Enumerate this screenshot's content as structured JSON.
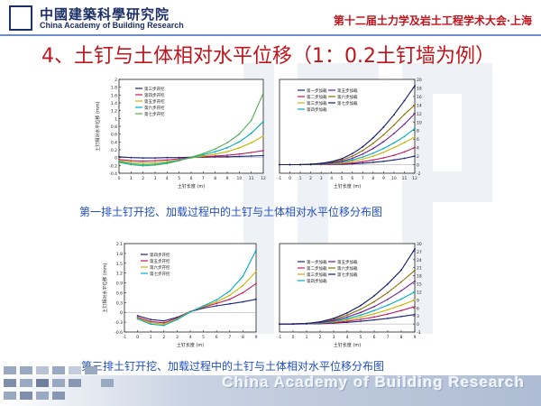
{
  "header": {
    "logo_cn": "中國建築科學研究院",
    "logo_en": "China Academy of Building Research",
    "conference": "第十二届土力学及岩土工程学术大会·上海"
  },
  "title": "4、土钉与土体相对水平位移（1：0.2土钉墙为例）",
  "captions": [
    "第一排土钉开挖、加载过程中的土钉与土体相对水平位移分布图",
    "第三排土钉开挖、加载过程中的土钉与土体相对水平位移分布图"
  ],
  "footer": {
    "text": "China Academy of Building Research"
  },
  "chart_data": [
    {
      "id": "row1-excavation",
      "type": "line",
      "xlabel": "土钉长度 (m)",
      "ylabel": "土钉相对水平位移 (mm)",
      "xlim": [
        0,
        12
      ],
      "ylim": [
        -0.4,
        2.0
      ],
      "xticks": [
        0,
        1,
        2,
        3,
        4,
        5,
        6,
        7,
        8,
        9,
        10,
        11,
        12
      ],
      "yticks": [
        -0.4,
        -0.2,
        0.0,
        0.2,
        0.4,
        0.6,
        0.8,
        1.0,
        1.2,
        1.4,
        1.6,
        1.8,
        2.0
      ],
      "legend_position": "top-left",
      "series": [
        {
          "name": "第三步开挖",
          "color": "#1a237e",
          "x": [
            0,
            1,
            2,
            3,
            4,
            5,
            6,
            7,
            8,
            9,
            10,
            11,
            12
          ],
          "y": [
            0.02,
            0.0,
            -0.01,
            -0.01,
            0.0,
            0.0,
            0.01,
            0.01,
            0.02,
            0.02,
            0.03,
            0.04,
            0.05
          ]
        },
        {
          "name": "第四步开挖",
          "color": "#c2185b",
          "x": [
            0,
            1,
            2,
            3,
            4,
            5,
            6,
            7,
            8,
            9,
            10,
            11,
            12
          ],
          "y": [
            -0.05,
            -0.08,
            -0.09,
            -0.08,
            -0.06,
            -0.03,
            0.0,
            0.02,
            0.04,
            0.06,
            0.09,
            0.13,
            0.18
          ]
        },
        {
          "name": "第五步开挖",
          "color": "#c8b400",
          "x": [
            0,
            1,
            2,
            3,
            4,
            5,
            6,
            7,
            8,
            9,
            10,
            11,
            12
          ],
          "y": [
            -0.08,
            -0.12,
            -0.14,
            -0.13,
            -0.1,
            -0.06,
            -0.01,
            0.04,
            0.09,
            0.15,
            0.25,
            0.38,
            0.55
          ]
        },
        {
          "name": "第六步开挖",
          "color": "#00acc1",
          "x": [
            0,
            1,
            2,
            3,
            4,
            5,
            6,
            7,
            8,
            9,
            10,
            11,
            12
          ],
          "y": [
            -0.1,
            -0.16,
            -0.18,
            -0.17,
            -0.13,
            -0.07,
            0.0,
            0.07,
            0.15,
            0.25,
            0.4,
            0.62,
            0.92
          ]
        },
        {
          "name": "第七步开挖",
          "color": "#4caf50",
          "x": [
            0,
            1,
            2,
            3,
            4,
            5,
            6,
            7,
            8,
            9,
            10,
            11,
            12
          ],
          "y": [
            -0.12,
            -0.18,
            -0.21,
            -0.19,
            -0.15,
            -0.08,
            0.01,
            0.1,
            0.22,
            0.38,
            0.6,
            0.95,
            1.65
          ]
        }
      ]
    },
    {
      "id": "row1-loading",
      "type": "line",
      "xlabel": "土钉长度 (m)",
      "ylabel": "",
      "xlim": [
        -1,
        12
      ],
      "ylim": [
        -2,
        20
      ],
      "xticks": [
        -1,
        0,
        1,
        2,
        3,
        4,
        5,
        6,
        7,
        8,
        9,
        10,
        11,
        12
      ],
      "yticks": [
        -2,
        0,
        2,
        4,
        6,
        8,
        10,
        12,
        14,
        16,
        18,
        20
      ],
      "legend_position": "top-left",
      "series": [
        {
          "name": "第一步加载",
          "color": "#1a237e",
          "x": [
            -1,
            0,
            1,
            2,
            3,
            4,
            5,
            6,
            7,
            8,
            9,
            10,
            11,
            12
          ],
          "y": [
            0,
            0,
            0,
            0,
            0,
            0.05,
            0.1,
            0.2,
            0.35,
            0.55,
            0.8,
            1.1,
            1.5,
            2.0
          ]
        },
        {
          "name": "第二步加载",
          "color": "#c2185b",
          "x": [
            -1,
            0,
            1,
            2,
            3,
            4,
            5,
            6,
            7,
            8,
            9,
            10,
            11,
            12
          ],
          "y": [
            0,
            0,
            0,
            0,
            0.05,
            0.1,
            0.2,
            0.4,
            0.7,
            1.1,
            1.6,
            2.2,
            3.0,
            4.0
          ]
        },
        {
          "name": "第三步加载",
          "color": "#c8b400",
          "x": [
            -1,
            0,
            1,
            2,
            3,
            4,
            5,
            6,
            7,
            8,
            9,
            10,
            11,
            12
          ],
          "y": [
            0,
            0,
            0,
            0.05,
            0.1,
            0.2,
            0.4,
            0.8,
            1.3,
            2.0,
            2.9,
            4.0,
            5.2,
            6.5
          ]
        },
        {
          "name": "第四步加载",
          "color": "#00acc1",
          "x": [
            -1,
            0,
            1,
            2,
            3,
            4,
            5,
            6,
            7,
            8,
            9,
            10,
            11,
            12
          ],
          "y": [
            0,
            0,
            0,
            0.05,
            0.15,
            0.3,
            0.6,
            1.1,
            1.8,
            2.7,
            3.8,
            5.1,
            6.6,
            8.5
          ]
        },
        {
          "name": "第五步加载",
          "color": "#6a1b9a",
          "x": [
            -1,
            0,
            1,
            2,
            3,
            4,
            5,
            6,
            7,
            8,
            9,
            10,
            11,
            12
          ],
          "y": [
            0,
            0,
            0,
            0.1,
            0.2,
            0.4,
            0.8,
            1.5,
            2.5,
            3.8,
            5.4,
            7.3,
            9.5,
            12.0
          ]
        },
        {
          "name": "第六步加载",
          "color": "#8d6e00",
          "x": [
            -1,
            0,
            1,
            2,
            3,
            4,
            5,
            6,
            7,
            8,
            9,
            10,
            11,
            12
          ],
          "y": [
            0,
            0,
            0,
            0.1,
            0.3,
            0.6,
            1.1,
            2.0,
            3.3,
            5.0,
            7.0,
            9.3,
            11.8,
            14.0
          ]
        },
        {
          "name": "第七步加载",
          "color": "#0d1a6e",
          "x": [
            -1,
            0,
            1,
            2,
            3,
            4,
            5,
            6,
            7,
            8,
            9,
            10,
            11,
            12
          ],
          "y": [
            0,
            0,
            0,
            0.1,
            0.3,
            0.7,
            1.4,
            2.6,
            4.2,
            6.3,
            8.8,
            11.7,
            15.0,
            18.5
          ]
        }
      ]
    },
    {
      "id": "row3-excavation",
      "type": "line",
      "xlabel": "土钉长度 (m)",
      "ylabel": "土钉相对水平位移 (mm)",
      "xlim": [
        -1,
        9
      ],
      "ylim": [
        -0.6,
        2.1
      ],
      "xticks": [
        -1,
        0,
        1,
        2,
        3,
        4,
        5,
        6,
        7,
        8,
        9
      ],
      "yticks": [
        -0.6,
        -0.3,
        0.0,
        0.3,
        0.6,
        0.9,
        1.2,
        1.5,
        1.8,
        2.1
      ],
      "legend_position": "top-left",
      "series": [
        {
          "name": "第四步开挖",
          "color": "#1a237e",
          "x": [
            0,
            1,
            2,
            3,
            4,
            5,
            6,
            7,
            8,
            9
          ],
          "y": [
            -0.1,
            -0.22,
            -0.26,
            -0.15,
            0.02,
            0.13,
            0.2,
            0.26,
            0.32,
            0.4
          ]
        },
        {
          "name": "第五步开挖",
          "color": "#c2185b",
          "x": [
            0,
            1,
            2,
            3,
            4,
            5,
            6,
            7,
            8,
            9
          ],
          "y": [
            -0.15,
            -0.28,
            -0.32,
            -0.18,
            0.03,
            0.16,
            0.27,
            0.4,
            0.6,
            0.88
          ]
        },
        {
          "name": "第六步开挖",
          "color": "#c8b400",
          "x": [
            0,
            1,
            2,
            3,
            4,
            5,
            6,
            7,
            8,
            9
          ],
          "y": [
            -0.18,
            -0.32,
            -0.36,
            -0.2,
            0.02,
            0.18,
            0.32,
            0.52,
            0.82,
            1.25
          ]
        },
        {
          "name": "第七步开挖",
          "color": "#00acc1",
          "x": [
            0,
            1,
            2,
            3,
            4,
            5,
            6,
            7,
            8,
            9
          ],
          "y": [
            -0.2,
            -0.36,
            -0.4,
            -0.22,
            0.01,
            0.2,
            0.38,
            0.65,
            1.1,
            1.9
          ]
        }
      ]
    },
    {
      "id": "row3-loading",
      "type": "line",
      "xlabel": "土钉长度 (m)",
      "ylabel": "",
      "xlim": [
        -1,
        9
      ],
      "ylim": [
        -3,
        30
      ],
      "xticks": [
        -1,
        0,
        1,
        2,
        3,
        4,
        5,
        6,
        7,
        8,
        9
      ],
      "yticks": [
        -3,
        0,
        3,
        6,
        9,
        12,
        15,
        18,
        21,
        24,
        27,
        30
      ],
      "legend_position": "top-left",
      "series": [
        {
          "name": "第一步加载",
          "color": "#1a237e",
          "x": [
            -1,
            0,
            1,
            2,
            3,
            4,
            5,
            6,
            7,
            8,
            9
          ],
          "y": [
            0,
            0,
            0,
            0.1,
            0.3,
            0.6,
            1.0,
            1.5,
            2.1,
            2.8,
            3.5
          ]
        },
        {
          "name": "第二步加载",
          "color": "#c2185b",
          "x": [
            -1,
            0,
            1,
            2,
            3,
            4,
            5,
            6,
            7,
            8,
            9
          ],
          "y": [
            0,
            0,
            0.05,
            0.2,
            0.5,
            1.0,
            1.7,
            2.6,
            3.7,
            5.0,
            6.5
          ]
        },
        {
          "name": "第三步加载",
          "color": "#c8b400",
          "x": [
            -1,
            0,
            1,
            2,
            3,
            4,
            5,
            6,
            7,
            8,
            9
          ],
          "y": [
            0,
            0,
            0.1,
            0.3,
            0.8,
            1.5,
            2.5,
            3.8,
            5.3,
            7.0,
            9.0
          ]
        },
        {
          "name": "第四步加载",
          "color": "#00acc1",
          "x": [
            -1,
            0,
            1,
            2,
            3,
            4,
            5,
            6,
            7,
            8,
            9
          ],
          "y": [
            0,
            0,
            0.1,
            0.4,
            1.0,
            2.0,
            3.3,
            5.0,
            7.0,
            9.3,
            12.0
          ]
        },
        {
          "name": "第五步加载",
          "color": "#6a1b9a",
          "x": [
            -1,
            0,
            1,
            2,
            3,
            4,
            5,
            6,
            7,
            8,
            9
          ],
          "y": [
            0,
            0,
            0.15,
            0.5,
            1.3,
            2.6,
            4.3,
            6.5,
            9.2,
            12.4,
            16.0
          ]
        },
        {
          "name": "第六步加载",
          "color": "#8d6e00",
          "x": [
            -1,
            0,
            1,
            2,
            3,
            4,
            5,
            6,
            7,
            8,
            9
          ],
          "y": [
            0,
            0,
            0.2,
            0.7,
            1.7,
            3.3,
            5.5,
            8.3,
            11.7,
            15.7,
            20.0
          ]
        },
        {
          "name": "第七步加载",
          "color": "#0d1a6e",
          "x": [
            -1,
            0,
            1,
            2,
            3,
            4,
            5,
            6,
            7,
            8,
            9
          ],
          "y": [
            0,
            0,
            0.2,
            0.8,
            2.1,
            4.1,
            6.9,
            10.5,
            14.9,
            20.1,
            28.0
          ]
        }
      ]
    }
  ]
}
